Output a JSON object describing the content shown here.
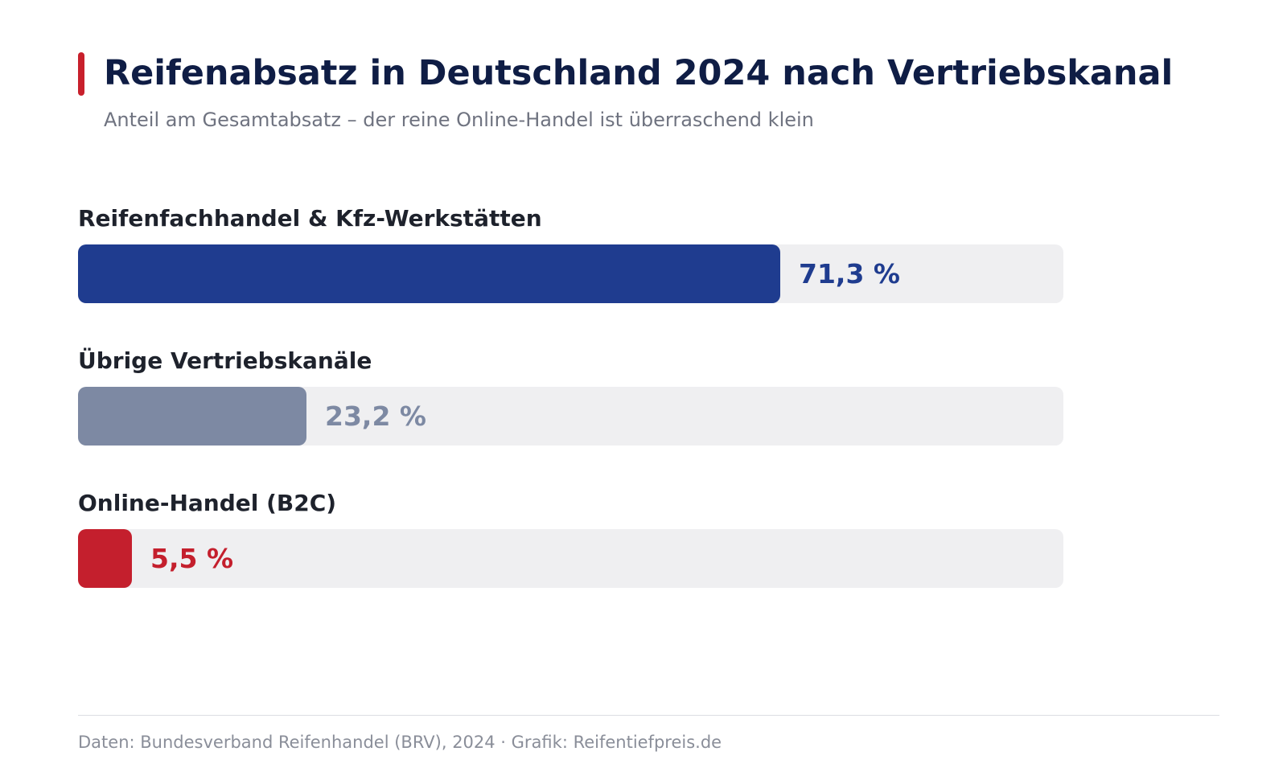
{
  "title": "Reifenabsatz in Deutschland 2024 nach Vertriebskanal",
  "subtitle": "Anteil am Gesamtabsatz – der reine Online-Handel ist überraschend klein",
  "source": "Daten: Bundesverband Reifenhandel (BRV), 2024 · Grafik: Reifentiefpreis.de",
  "colors": {
    "accent": "#c8202c",
    "title": "#0f1d45",
    "track": "#efeff1"
  },
  "chart_data": {
    "type": "bar",
    "orientation": "horizontal",
    "unit": "%",
    "xlim": [
      0,
      100
    ],
    "grid": false,
    "legend": "none",
    "categories": [
      "Reifenfachhandel & Kfz-Werkstätten",
      "Übrige Vertriebskanäle",
      "Online-Handel (B2C)"
    ],
    "values": [
      71.3,
      23.2,
      5.5
    ],
    "value_labels": [
      "71,3 %",
      "23,2 %",
      "5,5 %"
    ],
    "bar_colors": [
      "#1f3c8f",
      "#7d89a3",
      "#c41f2d"
    ]
  }
}
